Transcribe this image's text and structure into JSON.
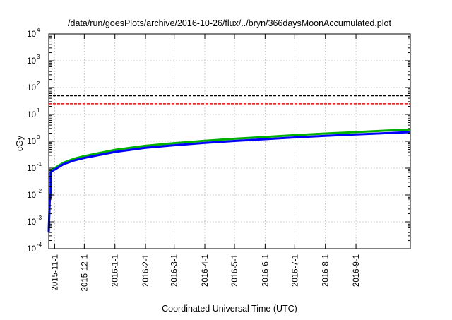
{
  "chart_data": {
    "type": "line",
    "title": "/data/run/goesPlots/archive/2016-10-26/flux/../bryn/366daysMoonAccumulated.plot",
    "xlabel": "Coordinated Universal Time (UTC)",
    "ylabel": "cGy",
    "yscale": "log",
    "ylim": [
      0.0001,
      10000
    ],
    "xlim": [
      "2015-10-26",
      "2016-10-26"
    ],
    "y_ticks": [
      {
        "base": "10",
        "exp": "-4",
        "value": 0.0001
      },
      {
        "base": "10",
        "exp": "-3",
        "value": 0.001
      },
      {
        "base": "10",
        "exp": "-2",
        "value": 0.01
      },
      {
        "base": "10",
        "exp": "-1",
        "value": 0.1
      },
      {
        "base": "10",
        "exp": "0",
        "value": 1
      },
      {
        "base": "10",
        "exp": "1",
        "value": 10
      },
      {
        "base": "10",
        "exp": "2",
        "value": 100
      },
      {
        "base": "10",
        "exp": "3",
        "value": 1000
      },
      {
        "base": "10",
        "exp": "4",
        "value": 10000
      }
    ],
    "x_ticks": [
      "2015-11-1",
      "2015-12-1",
      "2016-1-1",
      "2016-2-1",
      "2016-3-1",
      "2016-4-1",
      "2016-5-1",
      "2016-6-1",
      "2016-7-1",
      "2016-8-1",
      "2016-9-1"
    ],
    "grid": true,
    "reference_lines": [
      {
        "y": 50,
        "color": "#000000",
        "style": "dashed"
      },
      {
        "y": 25,
        "color": "#ff0000",
        "style": "dashed"
      }
    ],
    "series": [
      {
        "color": "#00b000",
        "points": [
          [
            "2015-10-26",
            0.00045
          ],
          [
            "2015-10-27",
            0.0065
          ],
          [
            "2015-10-28",
            0.012
          ],
          [
            "2015-10-28",
            0.078
          ],
          [
            "2015-10-30",
            0.09
          ],
          [
            "2015-11-1",
            0.1
          ],
          [
            "2015-11-10",
            0.16
          ],
          [
            "2015-11-20",
            0.22
          ],
          [
            "2015-12-1",
            0.28
          ],
          [
            "2016-1-1",
            0.48
          ],
          [
            "2016-2-1",
            0.68
          ],
          [
            "2016-3-1",
            0.85
          ],
          [
            "2016-4-1",
            1.05
          ],
          [
            "2016-5-1",
            1.25
          ],
          [
            "2016-6-1",
            1.45
          ],
          [
            "2016-7-1",
            1.7
          ],
          [
            "2016-8-1",
            1.95
          ],
          [
            "2016-9-1",
            2.2
          ],
          [
            "2016-10-1",
            2.5
          ],
          [
            "2016-10-26",
            2.75
          ]
        ]
      },
      {
        "color": "#0000ff",
        "points": [
          [
            "2015-10-26",
            0.0004
          ],
          [
            "2015-10-27",
            0.006
          ],
          [
            "2015-10-28",
            0.011
          ],
          [
            "2015-10-28",
            0.068
          ],
          [
            "2015-10-30",
            0.08
          ],
          [
            "2015-11-1",
            0.088
          ],
          [
            "2015-11-10",
            0.14
          ],
          [
            "2015-11-20",
            0.19
          ],
          [
            "2015-12-1",
            0.24
          ],
          [
            "2016-1-1",
            0.4
          ],
          [
            "2016-2-1",
            0.57
          ],
          [
            "2016-3-1",
            0.71
          ],
          [
            "2016-4-1",
            0.87
          ],
          [
            "2016-5-1",
            1.03
          ],
          [
            "2016-6-1",
            1.2
          ],
          [
            "2016-7-1",
            1.4
          ],
          [
            "2016-8-1",
            1.6
          ],
          [
            "2016-9-1",
            1.8
          ],
          [
            "2016-10-1",
            2.0
          ],
          [
            "2016-10-26",
            2.2
          ]
        ]
      }
    ]
  }
}
